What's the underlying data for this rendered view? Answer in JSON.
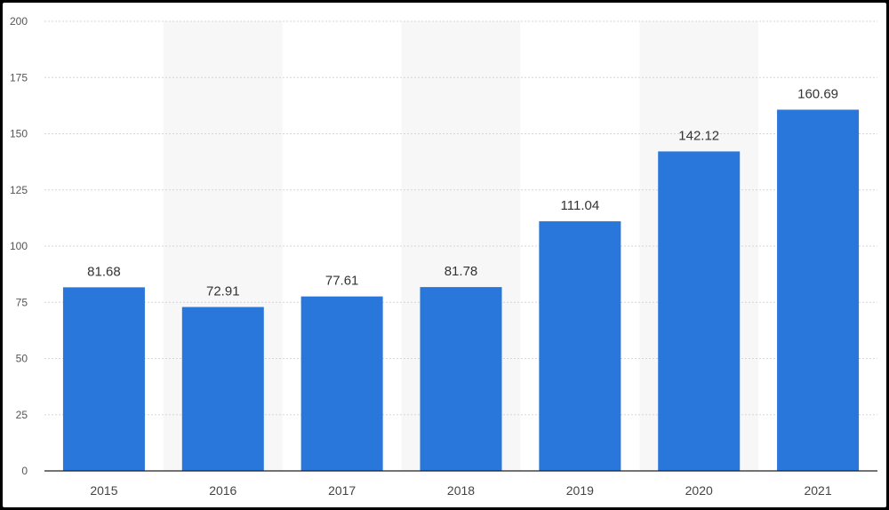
{
  "chart_data": {
    "type": "bar",
    "categories": [
      "2015",
      "2016",
      "2017",
      "2018",
      "2019",
      "2020",
      "2021"
    ],
    "values": [
      81.68,
      72.91,
      77.61,
      81.78,
      111.04,
      142.12,
      160.69
    ],
    "value_labels": [
      "81.68",
      "72.91",
      "77.61",
      "81.78",
      "111.04",
      "142.12",
      "160.69"
    ],
    "ylim": [
      0,
      200
    ],
    "yticks": [
      0,
      25,
      50,
      75,
      100,
      125,
      150,
      175,
      200
    ],
    "ytick_labels": [
      "0",
      "25",
      "50",
      "75",
      "100",
      "125",
      "150",
      "175",
      "200"
    ],
    "title": "",
    "xlabel": "",
    "ylabel": "",
    "grid": true,
    "bar_color": "#2a77db",
    "band_color": "#f7f7f7"
  }
}
